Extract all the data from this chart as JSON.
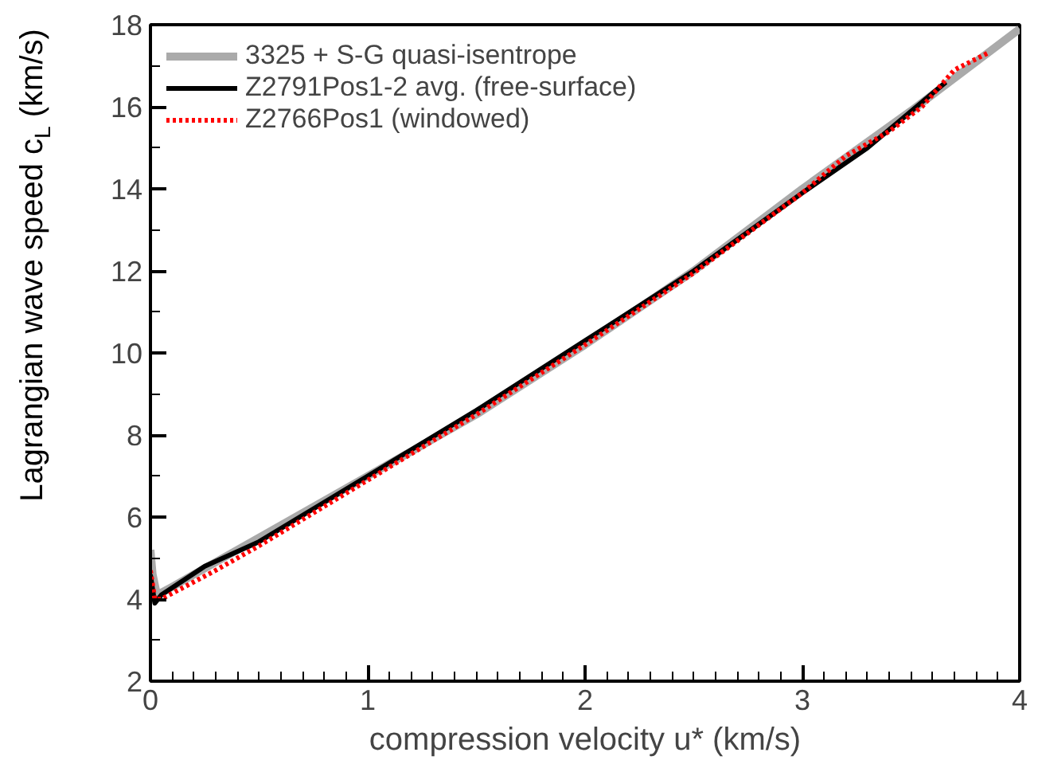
{
  "chart_data": {
    "type": "line",
    "xlabel": "compression velocity u* (km/s)",
    "ylabel": "Lagrangian wave speed c$_{L}$ (km/s)",
    "xlim": [
      0,
      4
    ],
    "ylim": [
      2,
      18
    ],
    "xticks": [
      0,
      1,
      2,
      3,
      4
    ],
    "yticks": [
      2,
      4,
      6,
      8,
      10,
      12,
      14,
      16,
      18
    ],
    "grid": false,
    "legend": "top left",
    "series": [
      {
        "name": "3325 + S-G quasi-isentrope",
        "color": "#aaaaaa",
        "line_style": "solid",
        "x": [
          0,
          0.01,
          0.03,
          0.1,
          0.5,
          1,
          1.5,
          2,
          2.5,
          3,
          3.5,
          4
        ],
        "values": [
          5.2,
          4.6,
          4.1,
          4.3,
          5.5,
          7.0,
          8.5,
          10.2,
          12.0,
          14.0,
          15.9,
          17.9
        ]
      },
      {
        "name": "Z2791Pos1-2 avg. (free-surface)",
        "color": "#000000",
        "line_style": "solid",
        "x": [
          0,
          0.02,
          0.05,
          0.25,
          0.5,
          1,
          1.5,
          2,
          2.5,
          3,
          3.3,
          3.66
        ],
        "values": [
          4.6,
          3.9,
          4.1,
          4.8,
          5.4,
          7.0,
          8.6,
          10.3,
          12.0,
          13.9,
          15.0,
          16.6
        ]
      },
      {
        "name": "Z2766Pos1 (windowed)",
        "color": "#ff0000",
        "line_style": "dotted",
        "x": [
          0,
          0.02,
          0.05,
          0.3,
          0.5,
          1,
          1.5,
          2,
          2.5,
          3,
          3.2,
          3.4,
          3.55,
          3.7,
          3.85
        ],
        "values": [
          4.7,
          4.0,
          4.0,
          4.7,
          5.3,
          6.9,
          8.5,
          10.2,
          11.95,
          13.9,
          14.8,
          15.4,
          16.0,
          16.9,
          17.3
        ]
      }
    ]
  }
}
